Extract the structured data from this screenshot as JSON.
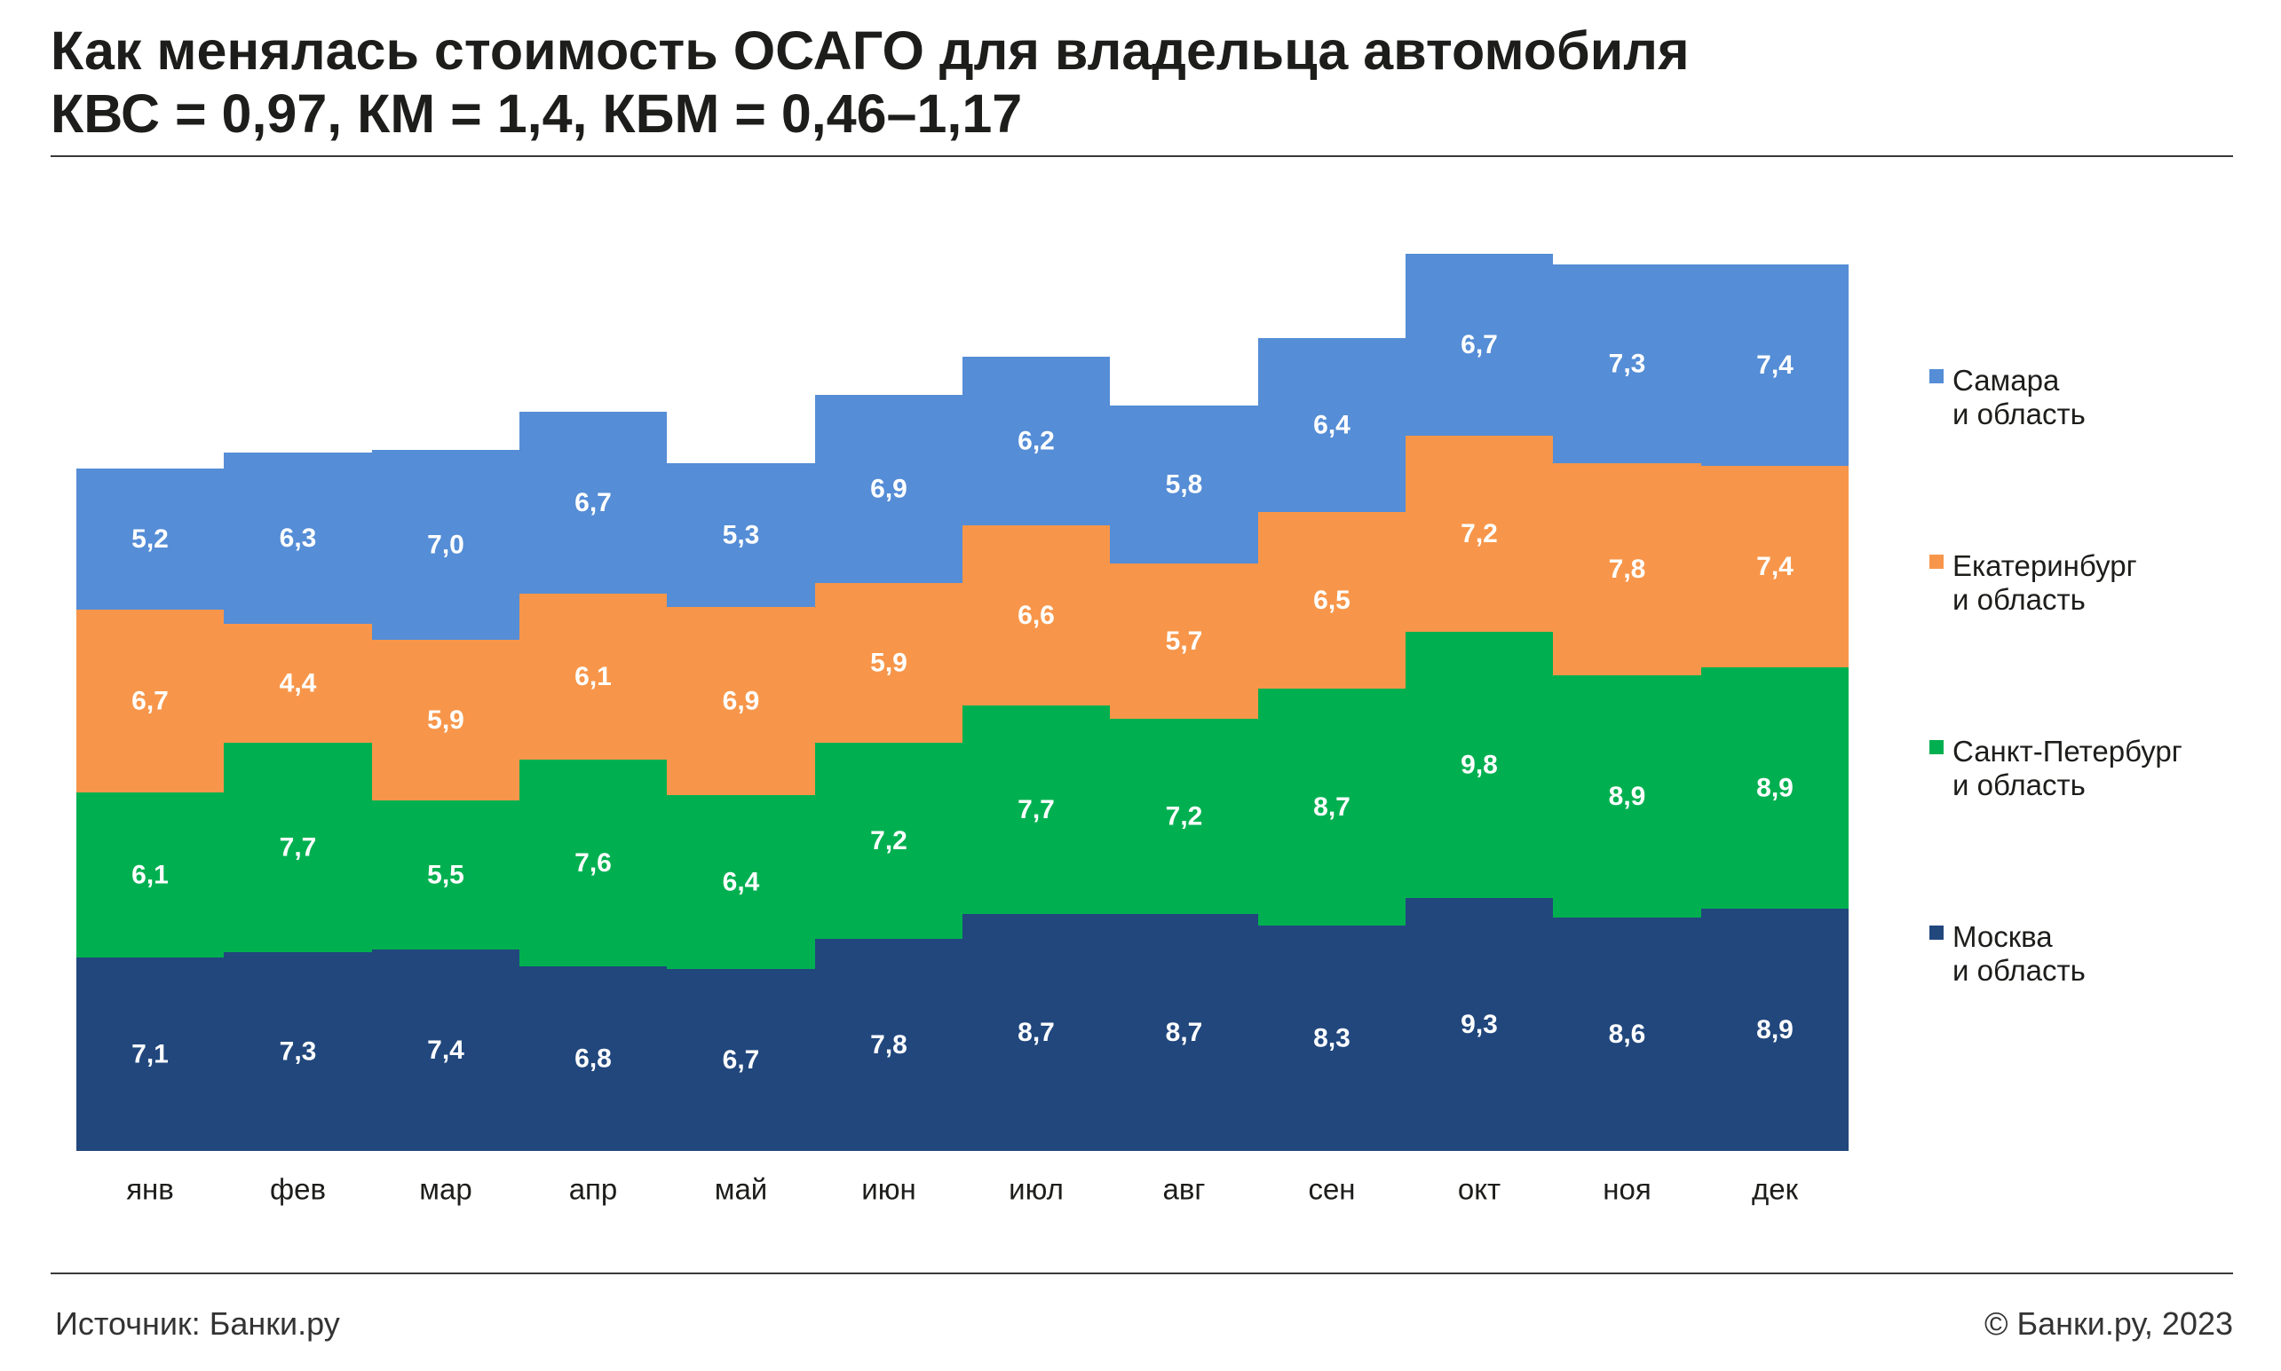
{
  "chart_data": {
    "type": "bar",
    "stacked": true,
    "title": "Как менялась стоимость ОСАГО для владельца автомобиля",
    "subtitle": "КВС = 0,97, КМ = 1,4, КБМ = 0,46–1,17",
    "xlabel": "",
    "ylabel": "",
    "ylim": [
      0,
      36
    ],
    "grid": false,
    "legend_position": "right",
    "categories": [
      "янв",
      "фев",
      "мар",
      "апр",
      "май",
      "июн",
      "июл",
      "авг",
      "сен",
      "окт",
      "ноя",
      "дек"
    ],
    "series": [
      {
        "name": "Москва\nи область",
        "color": "#21477D",
        "values": [
          7.1,
          7.3,
          7.4,
          6.8,
          6.7,
          7.8,
          8.7,
          8.7,
          8.3,
          9.3,
          8.6,
          8.9
        ],
        "labels": [
          "7,1",
          "7,3",
          "7,4",
          "6,8",
          "6,7",
          "7,8",
          "8,7",
          "8,7",
          "8,3",
          "9,3",
          "8,6",
          "8,9"
        ]
      },
      {
        "name": "Санкт-Петербург\nи область",
        "color": "#00B050",
        "values": [
          6.1,
          7.7,
          5.5,
          7.6,
          6.4,
          7.2,
          7.7,
          7.2,
          8.7,
          9.8,
          8.9,
          8.9
        ],
        "labels": [
          "6,1",
          "7,7",
          "5,5",
          "7,6",
          "6,4",
          "7,2",
          "7,7",
          "7,2",
          "8,7",
          "9,8",
          "8,9",
          "8,9"
        ]
      },
      {
        "name": "Екатеринбург\nи область",
        "color": "#F7964A",
        "values": [
          6.7,
          4.4,
          5.9,
          6.1,
          6.9,
          5.9,
          6.6,
          5.7,
          6.5,
          7.2,
          7.8,
          7.4
        ],
        "labels": [
          "6,7",
          "4,4",
          "5,9",
          "6,1",
          "6,9",
          "5,9",
          "6,6",
          "5,7",
          "6,5",
          "7,2",
          "7,8",
          "7,4"
        ]
      },
      {
        "name": "Самара\nи область",
        "color": "#558DD6",
        "values": [
          5.2,
          6.3,
          7.0,
          6.7,
          5.3,
          6.9,
          6.2,
          5.8,
          6.4,
          6.7,
          7.3,
          7.4
        ],
        "labels": [
          "5,2",
          "6,3",
          "7,0",
          "6,7",
          "5,3",
          "6,9",
          "6,2",
          "5,8",
          "6,4",
          "6,7",
          "7,3",
          "7,4"
        ]
      }
    ]
  },
  "footer": {
    "source": "Источник: Банки.ру",
    "copyright": "© Банки.ру, 2023"
  }
}
